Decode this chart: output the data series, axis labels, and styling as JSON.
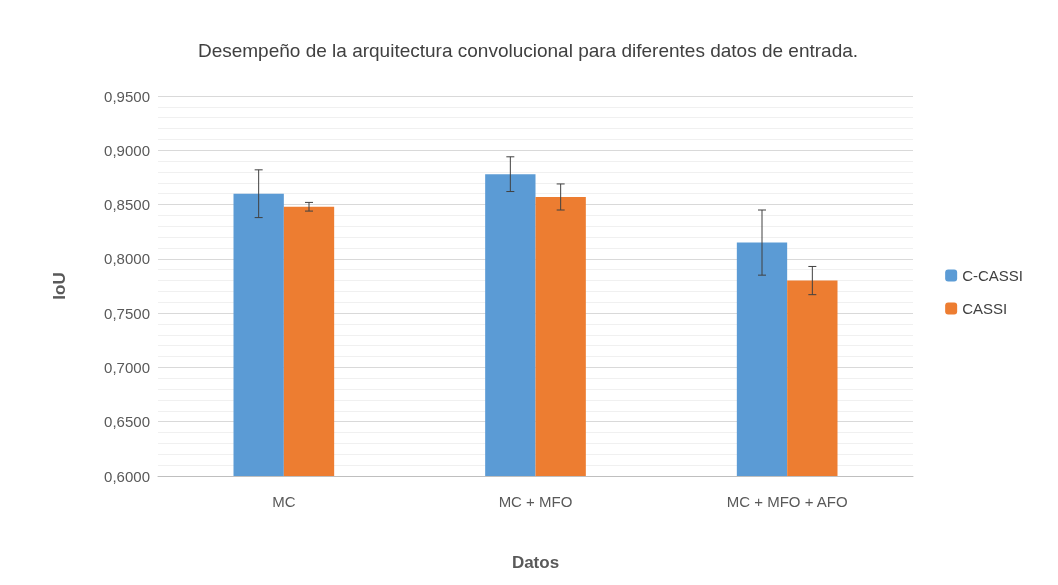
{
  "chart_data": {
    "type": "bar",
    "title": "Desempeño de la arquitectura convolucional para diferentes datos de entrada.",
    "xlabel": "Datos",
    "ylabel": "IoU",
    "categories": [
      "MC",
      "MC + MFO",
      "MC + MFO + AFO"
    ],
    "series": [
      {
        "name": "C-CASSI",
        "color": "#5b9bd5",
        "values": [
          0.86,
          0.878,
          0.815
        ],
        "errors": [
          0.022,
          0.016,
          0.03
        ]
      },
      {
        "name": "CASSI",
        "color": "#ed7d31",
        "values": [
          0.848,
          0.857,
          0.78
        ],
        "errors": [
          0.004,
          0.012,
          0.013
        ]
      }
    ],
    "ylim": [
      0.6,
      0.95
    ],
    "yticks": [
      {
        "value": 0.6,
        "label": "0,6000"
      },
      {
        "value": 0.65,
        "label": "0,6500"
      },
      {
        "value": 0.7,
        "label": "0,7000"
      },
      {
        "value": 0.75,
        "label": "0,7500"
      },
      {
        "value": 0.8,
        "label": "0,8000"
      },
      {
        "value": 0.85,
        "label": "0,8500"
      },
      {
        "value": 0.9,
        "label": "0,9000"
      },
      {
        "value": 0.95,
        "label": "0,9500"
      }
    ],
    "grid": "y",
    "legend": "right"
  }
}
